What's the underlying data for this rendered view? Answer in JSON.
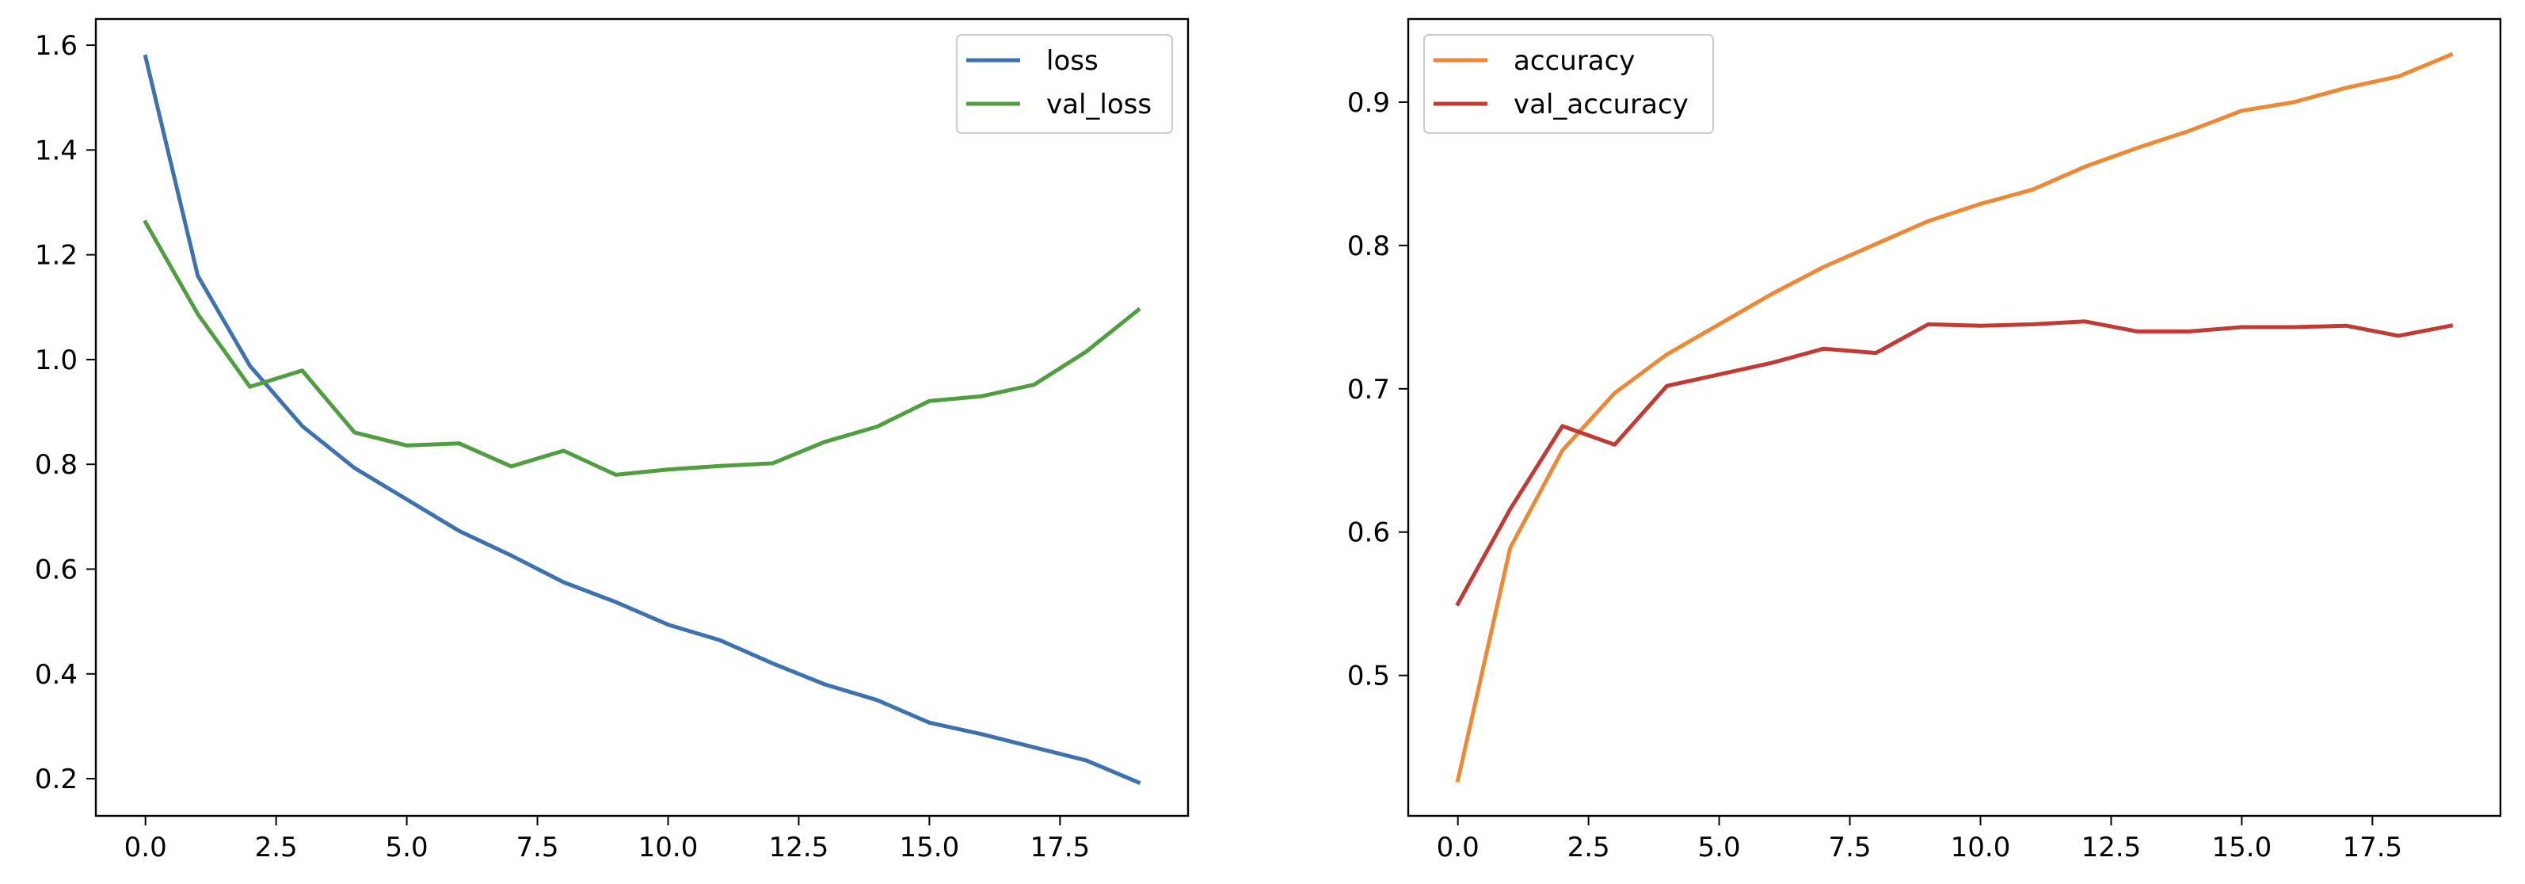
{
  "chart_data": [
    {
      "type": "line",
      "title": "",
      "xlabel": "",
      "ylabel": "",
      "xlim": [
        -0.95,
        19.95
      ],
      "ylim": [
        0.129,
        1.65
      ],
      "xticks": [
        0,
        2.5,
        5,
        7.5,
        10,
        12.5,
        15,
        17.5
      ],
      "xtick_labels": [
        "0.0",
        "2.5",
        "5.0",
        "7.5",
        "10.0",
        "12.5",
        "15.0",
        "17.5"
      ],
      "yticks": [
        0.2,
        0.4,
        0.6,
        0.8,
        1.0,
        1.2,
        1.4,
        1.6
      ],
      "ytick_labels": [
        "0.2",
        "0.4",
        "0.6",
        "0.8",
        "1.0",
        "1.2",
        "1.4",
        "1.6"
      ],
      "grid": false,
      "legend_position": "top-right",
      "x": [
        0,
        1,
        2,
        3,
        4,
        5,
        6,
        7,
        8,
        9,
        10,
        11,
        12,
        13,
        14,
        15,
        16,
        17,
        18,
        19
      ],
      "series": [
        {
          "name": "loss",
          "color": "#3c72b0",
          "values": [
            1.578,
            1.16,
            0.988,
            0.873,
            0.793,
            0.733,
            0.673,
            0.626,
            0.575,
            0.537,
            0.494,
            0.464,
            0.42,
            0.38,
            0.35,
            0.307,
            0.285,
            0.26,
            0.235,
            0.193
          ]
        },
        {
          "name": "val_loss",
          "color": "#4f9e3f",
          "values": [
            1.262,
            1.087,
            0.948,
            0.979,
            0.861,
            0.836,
            0.84,
            0.796,
            0.826,
            0.78,
            0.79,
            0.797,
            0.802,
            0.843,
            0.872,
            0.921,
            0.93,
            0.952,
            1.015,
            1.095
          ]
        }
      ]
    },
    {
      "type": "line",
      "title": "",
      "xlabel": "",
      "ylabel": "",
      "xlim": [
        -0.95,
        19.95
      ],
      "ylim": [
        0.402,
        0.958
      ],
      "xticks": [
        0,
        2.5,
        5,
        7.5,
        10,
        12.5,
        15,
        17.5
      ],
      "xtick_labels": [
        "0.0",
        "2.5",
        "5.0",
        "7.5",
        "10.0",
        "12.5",
        "15.0",
        "17.5"
      ],
      "yticks": [
        0.5,
        0.6,
        0.7,
        0.8,
        0.9
      ],
      "ytick_labels": [
        "0.5",
        "0.6",
        "0.7",
        "0.8",
        "0.9"
      ],
      "grid": false,
      "legend_position": "top-left",
      "x": [
        0,
        1,
        2,
        3,
        4,
        5,
        6,
        7,
        8,
        9,
        10,
        11,
        12,
        13,
        14,
        15,
        16,
        17,
        18,
        19
      ],
      "series": [
        {
          "name": "accuracy",
          "color": "#ee8834",
          "values": [
            0.427,
            0.589,
            0.657,
            0.697,
            0.724,
            0.745,
            0.766,
            0.785,
            0.801,
            0.817,
            0.829,
            0.839,
            0.855,
            0.868,
            0.88,
            0.894,
            0.9,
            0.91,
            0.918,
            0.933
          ]
        },
        {
          "name": "val_accuracy",
          "color": "#c23a33",
          "values": [
            0.55,
            0.616,
            0.674,
            0.661,
            0.702,
            0.71,
            0.718,
            0.728,
            0.725,
            0.745,
            0.744,
            0.745,
            0.747,
            0.74,
            0.74,
            0.743,
            0.743,
            0.744,
            0.737,
            0.744
          ]
        }
      ]
    }
  ]
}
